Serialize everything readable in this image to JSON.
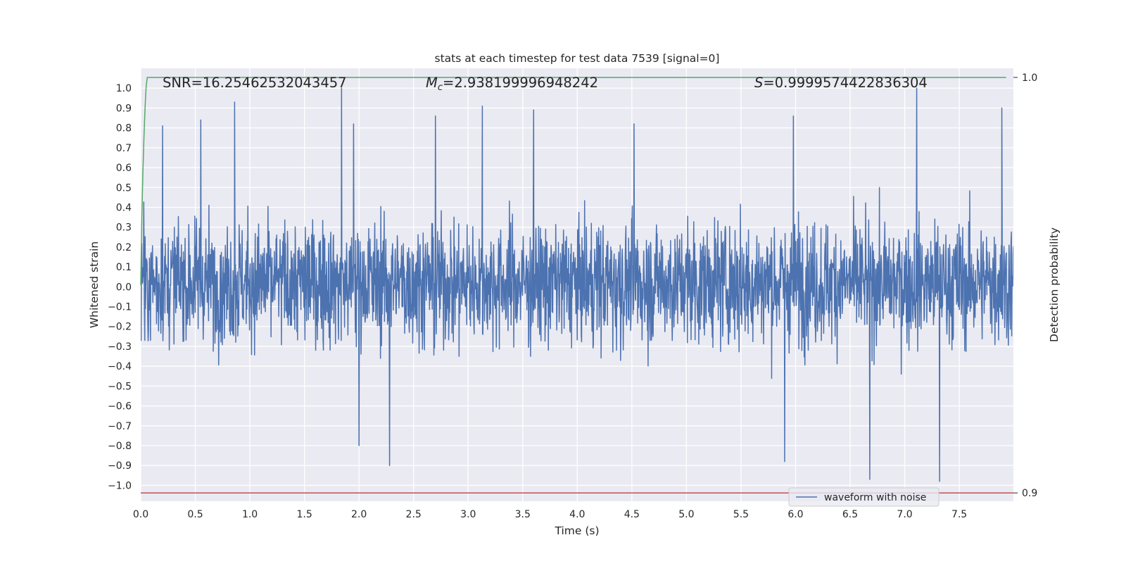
{
  "chart_data": {
    "type": "line",
    "title": "stats at each timestep for test data 7539 [signal=0]",
    "xlabel": "Time (s)",
    "ylabel": "Whitened strain",
    "y2label": "Detection probability",
    "xlim": [
      0.0,
      7.996
    ],
    "ylim": [
      -1.08,
      1.1
    ],
    "y2lim": [
      0.898,
      1.0022
    ],
    "x_ticks": [
      0.0,
      0.5,
      1.0,
      1.5,
      2.0,
      2.5,
      3.0,
      3.5,
      4.0,
      4.5,
      5.0,
      5.5,
      6.0,
      6.5,
      7.0,
      7.5
    ],
    "x_tick_labels": [
      "0.0",
      "0.5",
      "1.0",
      "1.5",
      "2.0",
      "2.5",
      "3.0",
      "3.5",
      "4.0",
      "4.5",
      "5.0",
      "5.5",
      "6.0",
      "6.5",
      "7.0",
      "7.5"
    ],
    "y_ticks": [
      1.0,
      0.9,
      0.8,
      0.7,
      0.6,
      0.5,
      0.4,
      0.3,
      0.2,
      0.1,
      0.0,
      -0.1,
      -0.2,
      -0.3,
      -0.4,
      -0.5,
      -0.6,
      -0.7,
      -0.8,
      -0.9,
      -1.0
    ],
    "y_tick_labels": [
      "1.0",
      "0.9",
      "0.8",
      "0.7",
      "0.6",
      "0.5",
      "0.4",
      "0.3",
      "0.2",
      "0.1",
      "0.0",
      "−0.1",
      "−0.2",
      "−0.3",
      "−0.4",
      "−0.5",
      "−0.6",
      "−0.7",
      "−0.8",
      "−0.9",
      "−1.0"
    ],
    "y2_ticks": [
      1.0,
      0.9
    ],
    "y2_tick_labels": [
      "1.0",
      "0.9"
    ],
    "grid": true,
    "legend_position": "lower-right",
    "annotations": {
      "snr": "SNR=16.25462532043457",
      "mc_symbol": "M",
      "mc_sub": "c",
      "mc_value": "=2.938199996948242",
      "s_symbol": "S",
      "s_value": "=0.9999574422836304"
    },
    "series": [
      {
        "name": "waveform with noise",
        "color": "#4c72b0",
        "kind": "noise-waveform",
        "amplitude_envelope": [
          -0.98,
          1.0
        ],
        "peaks": [
          {
            "x": 0.2,
            "y": 0.81
          },
          {
            "x": 0.55,
            "y": 0.84
          },
          {
            "x": 0.86,
            "y": 0.93
          },
          {
            "x": 1.84,
            "y": 1.0
          },
          {
            "x": 1.95,
            "y": 0.82
          },
          {
            "x": 2.0,
            "y": -0.8
          },
          {
            "x": 2.28,
            "y": -0.9
          },
          {
            "x": 2.7,
            "y": 0.86
          },
          {
            "x": 3.13,
            "y": 0.91
          },
          {
            "x": 3.6,
            "y": 0.89
          },
          {
            "x": 4.52,
            "y": 0.82
          },
          {
            "x": 5.9,
            "y": -0.88
          },
          {
            "x": 5.98,
            "y": 0.86
          },
          {
            "x": 6.68,
            "y": -0.97
          },
          {
            "x": 7.11,
            "y": 1.0
          },
          {
            "x": 7.32,
            "y": -0.98
          },
          {
            "x": 7.89,
            "y": 0.9
          }
        ]
      },
      {
        "name": "",
        "color": "#55a868",
        "axis": "right",
        "x": [
          0.0,
          0.01,
          0.02,
          0.03,
          0.04,
          0.05,
          0.06,
          7.93
        ],
        "values": [
          0.95,
          0.9665,
          0.9775,
          0.986,
          0.993,
          0.998,
          1.0,
          1.0
        ]
      },
      {
        "name": "",
        "color": "#c44e52",
        "axis": "right",
        "x": [
          0.0,
          7.996
        ],
        "values": [
          0.9,
          0.9
        ]
      }
    ]
  }
}
